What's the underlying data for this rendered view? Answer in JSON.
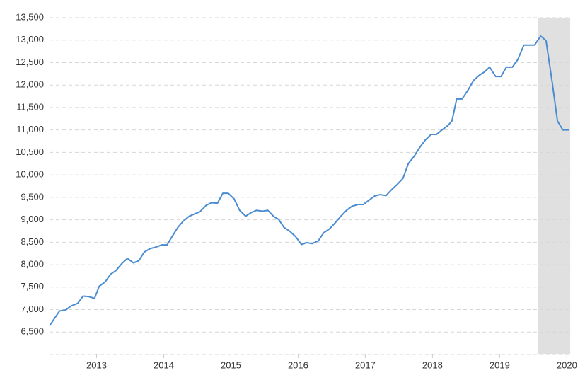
{
  "chart_data": {
    "type": "line",
    "x": [
      2012.3,
      2012.45,
      2012.54,
      2012.62,
      2012.72,
      2012.8,
      2012.88,
      2012.97,
      2013.04,
      2013.13,
      2013.21,
      2013.29,
      2013.38,
      2013.46,
      2013.55,
      2013.63,
      2013.71,
      2013.8,
      2013.88,
      2013.97,
      2014.05,
      2014.13,
      2014.21,
      2014.29,
      2014.38,
      2014.46,
      2014.54,
      2014.63,
      2014.71,
      2014.8,
      2014.88,
      2014.96,
      2015.05,
      2015.13,
      2015.22,
      2015.3,
      2015.38,
      2015.47,
      2015.55,
      2015.64,
      2015.71,
      2015.79,
      2015.88,
      2015.96,
      2016.05,
      2016.13,
      2016.21,
      2016.3,
      2016.38,
      2016.47,
      2016.55,
      2016.63,
      2016.72,
      2016.8,
      2016.89,
      2016.97,
      2017.05,
      2017.14,
      2017.22,
      2017.31,
      2017.39,
      2017.47,
      2017.56,
      2017.64,
      2017.73,
      2017.81,
      2017.89,
      2017.98,
      2018.06,
      2018.15,
      2018.23,
      2018.29,
      2018.36,
      2018.44,
      2018.53,
      2018.61,
      2018.69,
      2018.78,
      2018.85,
      2018.94,
      2019.02,
      2019.1,
      2019.19,
      2019.27,
      2019.36,
      2019.44,
      2019.52,
      2019.61,
      2019.69,
      2019.78,
      2019.86,
      2019.94,
      2020.03
    ],
    "series": [
      {
        "color": "#4a8ccf",
        "values": [
          6640,
          6970,
          6990,
          7080,
          7140,
          7300,
          7290,
          7250,
          7520,
          7620,
          7790,
          7870,
          8030,
          8140,
          8040,
          8090,
          8280,
          8360,
          8390,
          8440,
          8440,
          8640,
          8830,
          8970,
          9080,
          9130,
          9180,
          9320,
          9380,
          9370,
          9590,
          9590,
          9460,
          9210,
          9080,
          9160,
          9210,
          9190,
          9210,
          9070,
          9010,
          8830,
          8740,
          8630,
          8450,
          8490,
          8470,
          8530,
          8710,
          8800,
          8930,
          9070,
          9210,
          9300,
          9340,
          9340,
          9430,
          9530,
          9560,
          9540,
          9670,
          9780,
          9920,
          10250,
          10420,
          10610,
          10770,
          10900,
          10900,
          11010,
          11100,
          11200,
          11690,
          11690,
          11890,
          12100,
          12210,
          12300,
          12400,
          12190,
          12190,
          12400,
          12400,
          12570,
          12890,
          12890,
          12890,
          13090,
          12990,
          12080,
          11200,
          11000,
          11000
        ]
      }
    ],
    "xlim": [
      2012.3,
      2020.07
    ],
    "xticks": [
      2013,
      2014,
      2015,
      2016,
      2017,
      2018,
      2019,
      2020
    ],
    "ylim": [
      6000,
      13500
    ],
    "yticks": [
      {
        "value": 6500,
        "label": "6,500"
      },
      {
        "value": 7000,
        "label": "7,000"
      },
      {
        "value": 7500,
        "label": "7,500"
      },
      {
        "value": 8000,
        "label": "8,000"
      },
      {
        "value": 8500,
        "label": "8,500"
      },
      {
        "value": 9000,
        "label": "9,000"
      },
      {
        "value": 9500,
        "label": "9,500"
      },
      {
        "value": 10000,
        "label": "10,000"
      },
      {
        "value": 10500,
        "label": "10,500"
      },
      {
        "value": 11000,
        "label": "11,000"
      },
      {
        "value": 11500,
        "label": "11,500"
      },
      {
        "value": 12000,
        "label": "12,000"
      },
      {
        "value": 12500,
        "label": "12,500"
      },
      {
        "value": 13000,
        "label": "13,000"
      },
      {
        "value": 13500,
        "label": "13,500"
      }
    ],
    "shaded_region": [
      2019.57,
      2020.05
    ],
    "grid": true
  }
}
